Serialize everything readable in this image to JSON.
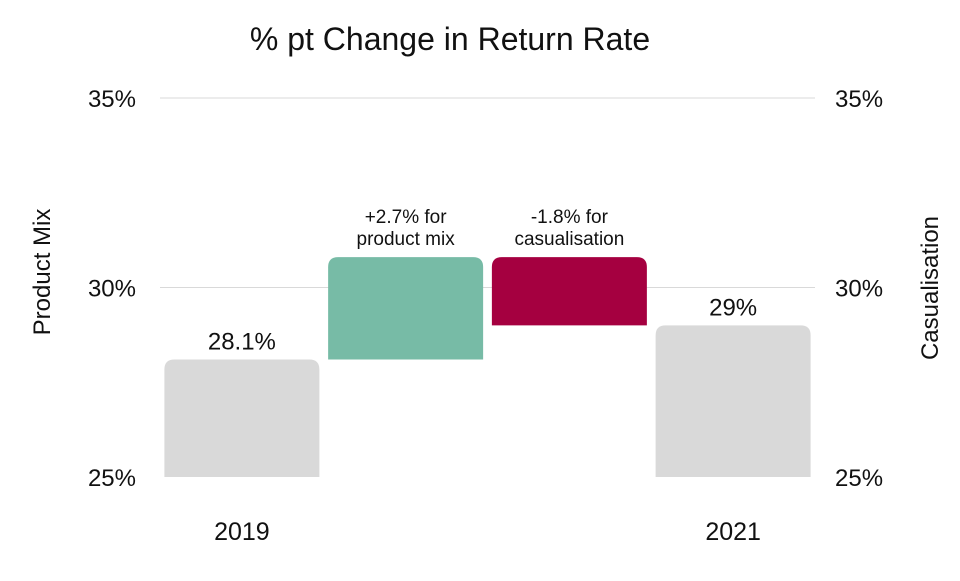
{
  "chart_data": {
    "type": "bar",
    "subtype": "waterfall",
    "title": "% pt Change in Return Rate",
    "ylabel_left": "Product Mix",
    "ylabel_right": "Casualisation",
    "ylim": [
      25,
      35
    ],
    "yticks": [
      {
        "value": 25,
        "label": "25%"
      },
      {
        "value": 30,
        "label": "30%"
      },
      {
        "value": 35,
        "label": "35%"
      }
    ],
    "grid": true,
    "bars": [
      {
        "key": "y2019",
        "category": "2019",
        "start": 25,
        "end": 28.1,
        "label": "28.1%",
        "color": "#d9d9d9"
      },
      {
        "key": "product_mix",
        "category": "",
        "start": 28.1,
        "end": 30.8,
        "label": "+2.7% for product mix",
        "color": "#77bba6"
      },
      {
        "key": "casualisation",
        "category": "",
        "start": 30.8,
        "end": 29.0,
        "label": "-1.8% for casualisation",
        "color": "#a50040"
      },
      {
        "key": "y2021",
        "category": "2021",
        "start": 25,
        "end": 29.0,
        "label": "29%",
        "color": "#d9d9d9"
      }
    ],
    "annotations": {
      "y2019": [
        "28.1%"
      ],
      "product_mix": [
        "+2.7% for",
        "product mix"
      ],
      "casualisation": [
        "-1.8% for",
        "casualisation"
      ],
      "y2021": [
        "29%"
      ]
    }
  }
}
